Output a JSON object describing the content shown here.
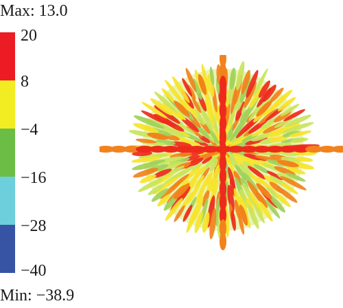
{
  "legend": {
    "max_label": "Max: 13.0",
    "min_label": "Min: −38.9",
    "ticks": [
      "20",
      "8",
      "−4",
      "−16",
      "−28",
      "−40"
    ],
    "band_colors": [
      "#ec1c24",
      "#f2ed22",
      "#6cbd45",
      "#6dcfdb",
      "#3753a4"
    ]
  },
  "plot": {
    "palette": [
      "#ee2a1c",
      "#f2821b",
      "#f6e42a",
      "#c9e45c",
      "#9fd15a"
    ]
  }
}
